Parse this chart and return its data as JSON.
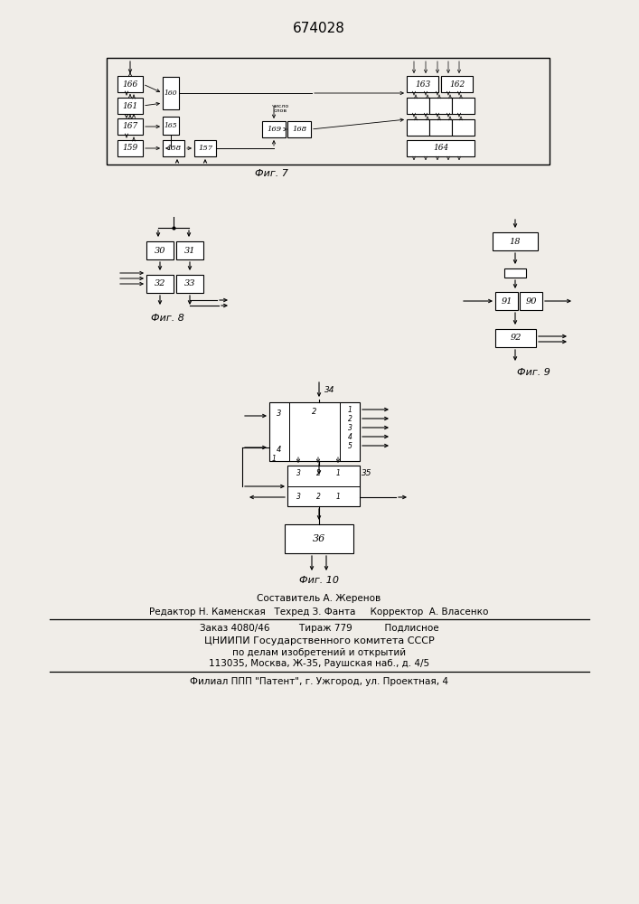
{
  "title": "674028",
  "bg_color": "#f0ede8",
  "footer_lines": [
    "Составитель А. Жеренов",
    "Редактор Н. Каменская   Техред З. Фанта     Корректор  А. Власенко",
    "Заказ 4080/46          Тираж 779           Подлисное",
    "ЦНИИПИ Государственного комитета СССР",
    "по делам изобретений и открытий",
    "113035, Москва, Ж-35, Раушская наб., д. 4/5",
    "Филиал ППП \"Патент\", г. Ужгород, ул. Проектная, 4"
  ]
}
